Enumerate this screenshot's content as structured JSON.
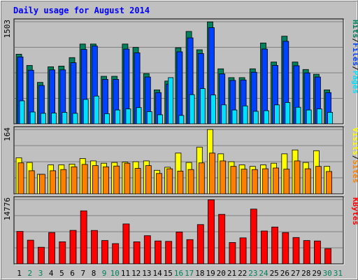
{
  "title": "Daily usage for August 2014",
  "colors": {
    "background": "#C0C0C0",
    "frame": "#000000",
    "title": "#0000FF",
    "hits": "#00805C",
    "files": "#0040FF",
    "pages": "#00E0FF",
    "visits": "#FFFF00",
    "sites": "#FF8000",
    "kbytes": "#FF0000",
    "weekend_day_label": "#00805C",
    "weekday_label": "#000000"
  },
  "chart_data": [
    {
      "type": "bar",
      "name": "hits-files-pages",
      "ymax_label": "1503",
      "ymax": 1503,
      "legend": [
        {
          "label": "Pages",
          "color_key": "pages"
        },
        {
          "label": "Files",
          "color_key": "files"
        },
        {
          "label": "Hits",
          "color_key": "hits"
        }
      ],
      "series": [
        {
          "key": "hits",
          "values": [
            1025,
            860,
            610,
            840,
            850,
            975,
            1175,
            1175,
            700,
            700,
            1175,
            1125,
            740,
            500,
            630,
            1120,
            1360,
            1090,
            1500,
            810,
            680,
            680,
            810,
            1190,
            910,
            1290,
            910,
            800,
            730,
            500,
            0
          ]
        },
        {
          "key": "files",
          "values": [
            985,
            790,
            565,
            795,
            795,
            900,
            1095,
            1145,
            655,
            655,
            1100,
            1045,
            690,
            460,
            585,
            1060,
            1265,
            1035,
            1415,
            735,
            640,
            645,
            760,
            1100,
            860,
            1215,
            855,
            750,
            690,
            460,
            0
          ]
        },
        {
          "key": "pages",
          "values": [
            340,
            175,
            155,
            160,
            170,
            155,
            360,
            410,
            150,
            205,
            220,
            240,
            180,
            135,
            680,
            125,
            430,
            520,
            425,
            280,
            205,
            265,
            185,
            195,
            280,
            315,
            245,
            205,
            220,
            170,
            0
          ]
        }
      ]
    },
    {
      "type": "bar",
      "name": "visits-sites",
      "ymax_label": "164",
      "ymax": 164,
      "legend": [
        {
          "label": "Sites",
          "color_key": "sites"
        },
        {
          "label": "Visits",
          "color_key": "visits"
        }
      ],
      "series": [
        {
          "key": "visits",
          "values": [
            92,
            80,
            50,
            74,
            74,
            76,
            90,
            84,
            78,
            80,
            81,
            82,
            84,
            60,
            68,
            104,
            80,
            119,
            164,
            102,
            82,
            74,
            70,
            74,
            78,
            102,
            112,
            80,
            110,
            70,
            0
          ]
        },
        {
          "key": "sites",
          "values": [
            79,
            59,
            50,
            59,
            62,
            69,
            75,
            72,
            69,
            71,
            78,
            65,
            72,
            52,
            64,
            58,
            62,
            79,
            104,
            84,
            70,
            63,
            62,
            64,
            66,
            63,
            84,
            64,
            70,
            57,
            0
          ]
        }
      ]
    },
    {
      "type": "bar",
      "name": "kbytes",
      "ymax_label": "14776",
      "ymax": 14776,
      "legend": [
        {
          "label": "KBytes",
          "color_key": "kbytes"
        }
      ],
      "series": [
        {
          "key": "kbytes",
          "values": [
            7450,
            5440,
            3820,
            7200,
            5070,
            7700,
            12170,
            7670,
            5370,
            4650,
            9170,
            5070,
            6480,
            5270,
            5170,
            7330,
            5580,
            9030,
            14700,
            11370,
            4920,
            5970,
            12570,
            7550,
            8470,
            7200,
            6050,
            5370,
            5270,
            3520,
            0
          ]
        }
      ]
    }
  ],
  "x_axis": {
    "days": [
      "1",
      "2",
      "3",
      "4",
      "5",
      "6",
      "7",
      "8",
      "9",
      "10",
      "11",
      "12",
      "13",
      "14",
      "15",
      "16",
      "17",
      "18",
      "19",
      "20",
      "21",
      "22",
      "23",
      "24",
      "25",
      "26",
      "27",
      "28",
      "29",
      "30",
      "31"
    ],
    "weekend_days": [
      "2",
      "3",
      "9",
      "10",
      "16",
      "17",
      "23",
      "24",
      "30",
      "31"
    ]
  }
}
